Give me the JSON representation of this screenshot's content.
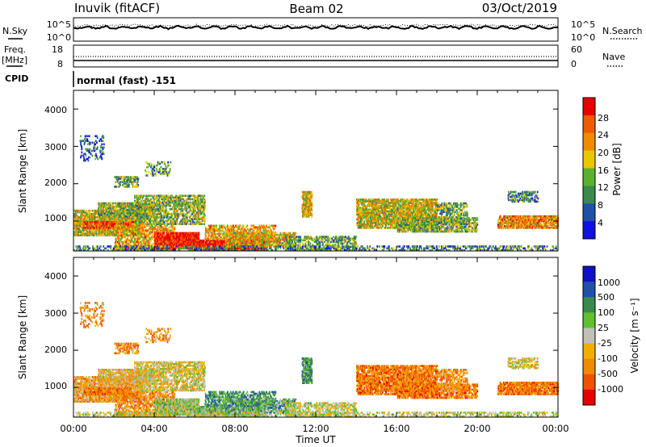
{
  "header": {
    "station": "Inuvik (fitACF)",
    "beam": "Beam 02",
    "date": "03/Oct/2019"
  },
  "top_panels": {
    "nsky_label": "N.Sky",
    "nsearch_label": "N.Search",
    "noise_ticks": [
      "10^5",
      "10^0"
    ],
    "freq_label": "Freq.",
    "freq_unit": "[MHz]",
    "freq_ticks": [
      "18",
      "8"
    ],
    "nave_label": "Nave",
    "nave_ticks": [
      "60",
      "0"
    ],
    "cpid_label": "CPID",
    "cpid_value": "normal (fast) -151"
  },
  "x_axis": {
    "label": "Time UT",
    "ticks": [
      "00:00",
      "04:00",
      "08:00",
      "12:00",
      "16:00",
      "20:00",
      "00:00"
    ]
  },
  "colors": {
    "power": [
      "#1010e0",
      "#2050a8",
      "#3a8a4c",
      "#5cb030",
      "#e8c800",
      "#f08a00",
      "#f05a00",
      "#e80000"
    ],
    "velocity": [
      "#e80000",
      "#f05000",
      "#f08a00",
      "#f0b000",
      "#c0c0b8",
      "#60c030",
      "#3a8a4c",
      "#2050a8",
      "#1010c8"
    ]
  },
  "chart_data": [
    {
      "type": "heatmap",
      "name": "power",
      "ylabel": "Slant Range [km]",
      "y_ticks": [
        "1000",
        "2000",
        "3000",
        "4000"
      ],
      "ylim": [
        200,
        4500
      ],
      "xlim": [
        0,
        24
      ],
      "colorbar": {
        "label": "Power [dB]",
        "ticks": [
          "4",
          "8",
          "12",
          "16",
          "20",
          "24",
          "28"
        ],
        "range": [
          0,
          32
        ]
      }
    },
    {
      "type": "heatmap",
      "name": "velocity",
      "ylabel": "Slant Range [km]",
      "y_ticks": [
        "1000",
        "2000",
        "3000",
        "4000"
      ],
      "ylim": [
        200,
        4500
      ],
      "xlim": [
        0,
        24
      ],
      "colorbar": {
        "label": "Velocity [m s⁻¹]",
        "ticks": [
          "1000",
          "500",
          "100",
          "25",
          "-25",
          "-100",
          "-500",
          "-1000"
        ]
      }
    }
  ]
}
